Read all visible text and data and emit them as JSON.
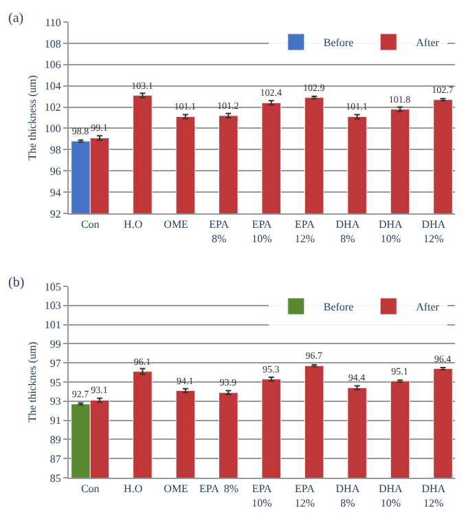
{
  "chart_data": [
    {
      "type": "bar",
      "title": "(a)",
      "ylabel": "The thickness (um)",
      "categories": [
        "Con",
        "H.O",
        "OME",
        "EPA\n8%",
        "EPA\n10%",
        "EPA\n12%",
        "DHA\n8%",
        "DHA\n10%",
        "DHA\n12%"
      ],
      "series": [
        {
          "name": "Before",
          "color": "#4472c4",
          "values": [
            98.8,
            null,
            null,
            null,
            null,
            null,
            null,
            null,
            null
          ],
          "errors": [
            0.1,
            null,
            null,
            null,
            null,
            null,
            null,
            null,
            null
          ]
        },
        {
          "name": "After",
          "color": "#c0373a",
          "values": [
            99.1,
            103.1,
            101.1,
            101.2,
            102.4,
            102.9,
            101.1,
            101.8,
            102.7
          ],
          "errors": [
            0.2,
            0.2,
            0.2,
            0.2,
            0.2,
            0.1,
            0.2,
            0.2,
            0.1
          ]
        }
      ],
      "ylim": [
        92,
        110
      ],
      "yticks": [
        92,
        94,
        96,
        98,
        100,
        102,
        104,
        106,
        108,
        110
      ],
      "grid": "y",
      "legend": "top right",
      "data_labels": true
    },
    {
      "type": "bar",
      "title": "(b)",
      "ylabel": "The thicknes (um)",
      "categories": [
        "Con",
        "H.O",
        "OME",
        "EPA  8%",
        "EPA\n10%",
        "EPA\n12%",
        "DHA\n8%",
        "DHA\n10%",
        "DHA\n12%"
      ],
      "series": [
        {
          "name": "Before",
          "color": "#5a8a2e",
          "values": [
            92.7,
            null,
            null,
            null,
            null,
            null,
            null,
            null,
            null
          ],
          "errors": [
            0.1,
            null,
            null,
            null,
            null,
            null,
            null,
            null,
            null
          ]
        },
        {
          "name": "After",
          "color": "#c0373a",
          "values": [
            93.1,
            96.1,
            94.1,
            93.9,
            95.3,
            96.7,
            94.4,
            95.1,
            96.4
          ],
          "errors": [
            0.2,
            0.3,
            0.2,
            0.2,
            0.2,
            0.1,
            0.2,
            0.1,
            0.1
          ]
        }
      ],
      "ylim": [
        85,
        105
      ],
      "yticks": [
        85,
        87,
        89,
        91,
        93,
        95,
        97,
        99,
        101,
        103,
        105
      ],
      "grid": "y",
      "legend": "top right",
      "data_labels": true
    }
  ]
}
